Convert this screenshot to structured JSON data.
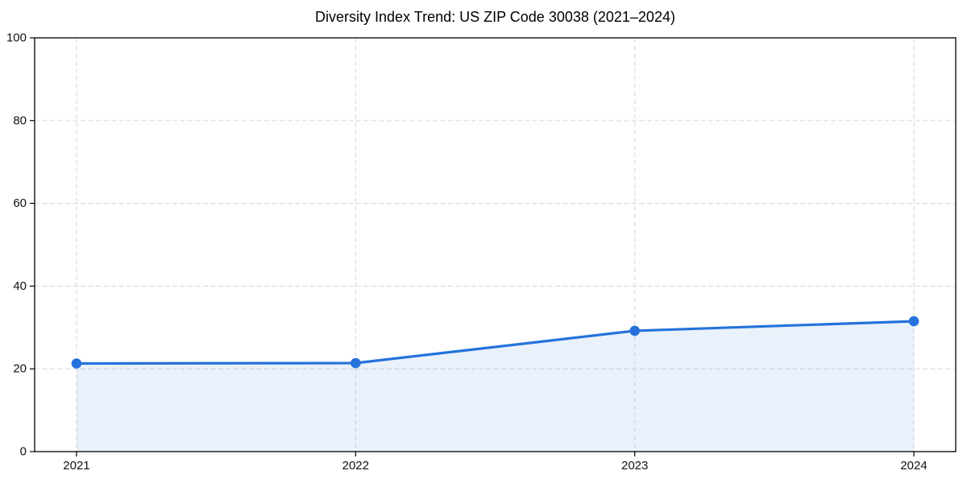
{
  "chart_data": {
    "type": "line",
    "title": "Diversity Index Trend: US ZIP Code 30038 (2021–2024)",
    "x": [
      2021,
      2022,
      2023,
      2024
    ],
    "series": [
      {
        "name": "Diversity Index",
        "values": [
          21.3,
          21.4,
          29.2,
          31.5
        ]
      }
    ],
    "xlabel": "",
    "ylabel": "",
    "ylim": [
      0,
      100
    ],
    "yticks": [
      0,
      20,
      40,
      60,
      80,
      100
    ],
    "grid": true,
    "grid_style": "dashed",
    "legend_position": "none",
    "line_color": "#2572dc",
    "marker": "circle",
    "marker_color": "#2572dc",
    "area_fill": true,
    "fill_color": "#2572dc",
    "fill_opacity": 0.1,
    "grid_color": "#dedede",
    "spine_color": "#000000",
    "background_color": "#ffffff"
  }
}
